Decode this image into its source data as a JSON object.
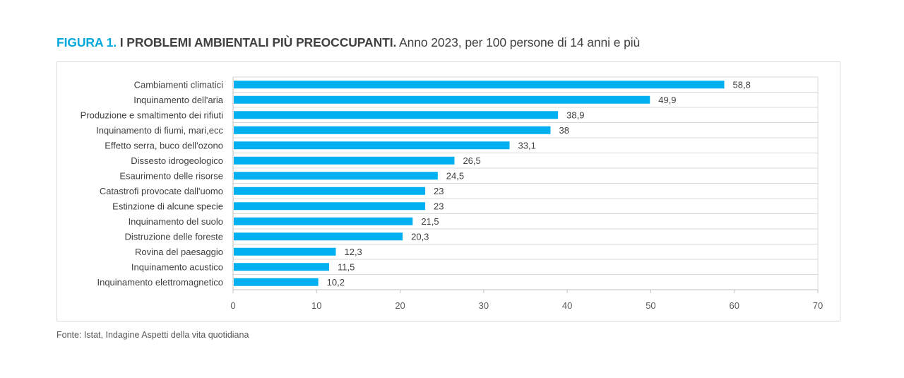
{
  "figure": {
    "label": "FIGURA 1.",
    "title": "I PROBLEMI AMBIENTALI PIÙ PREOCCUPANTI.",
    "subtitle": "Anno 2023, per 100 persone di 14 anni e più"
  },
  "source": "Fonte: Istat, Indagine Aspetti della vita quotidiana",
  "colors": {
    "bar": "#00b0f0",
    "label_accent": "#00a7dc",
    "grid": "#d9d9d9"
  },
  "chart_data": {
    "type": "bar",
    "orientation": "horizontal",
    "categories": [
      "Cambiamenti climatici",
      "Inquinamento dell'aria",
      "Produzione e smaltimento dei rifiuti",
      "Inquinamento di fiumi, mari,ecc",
      "Effetto serra, buco dell'ozono",
      "Dissesto idrogeologico",
      "Esaurimento delle risorse",
      "Catastrofi provocate dall'uomo",
      "Estinzione di alcune specie",
      "Inquinamento del suolo",
      "Distruzione delle foreste",
      "Rovina del paesaggio",
      "Inquinamento acustico",
      "Inquinamento elettromagnetico"
    ],
    "values": [
      58.8,
      49.9,
      38.9,
      38,
      33.1,
      26.5,
      24.5,
      23,
      23,
      21.5,
      20.3,
      12.3,
      11.5,
      10.2
    ],
    "value_labels": [
      "58,8",
      "49,9",
      "38,9",
      "38",
      "33,1",
      "26,5",
      "24,5",
      "23",
      "23",
      "21,5",
      "20,3",
      "12,3",
      "11,5",
      "10,2"
    ],
    "xlim": [
      0,
      70
    ],
    "xticks": [
      0,
      10,
      20,
      30,
      40,
      50,
      60,
      70
    ],
    "xtick_labels": [
      "0",
      "10",
      "20",
      "30",
      "40",
      "50",
      "60",
      "70"
    ],
    "grid": true,
    "legend": "none"
  }
}
